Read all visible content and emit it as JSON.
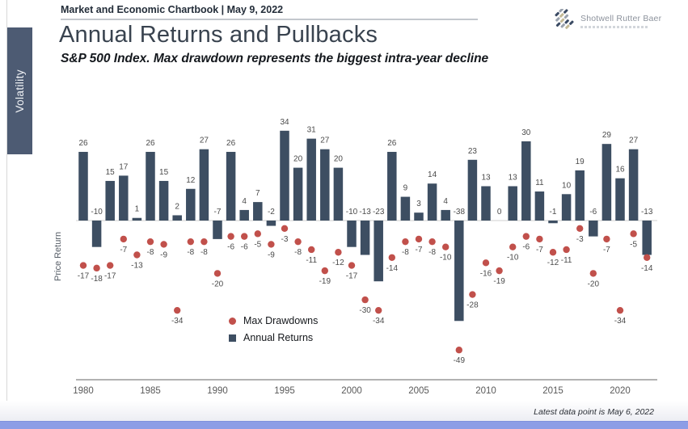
{
  "sidebar": {
    "tab_label": "Volatility"
  },
  "header": {
    "chartbook_label": "Market and Economic Chartbook | May 9, 2022"
  },
  "brand": {
    "name": "Shotwell Rutter Baer",
    "icon": "diagonal-dashes-logo"
  },
  "title": "Annual Returns and Pullbacks",
  "subtitle": "S&P 500 Index. Max drawdown represents the biggest intra-year decline",
  "footer_note": "Latest data point is May 6, 2022",
  "chart_data": {
    "type": "bar",
    "title": "Annual Returns and Pullbacks",
    "xlabel": "",
    "ylabel": "Price Return",
    "x": [
      1980,
      1981,
      1982,
      1983,
      1984,
      1985,
      1986,
      1987,
      1988,
      1989,
      1990,
      1991,
      1992,
      1993,
      1994,
      1995,
      1996,
      1997,
      1998,
      1999,
      2000,
      2001,
      2002,
      2003,
      2004,
      2005,
      2006,
      2007,
      2008,
      2009,
      2010,
      2011,
      2012,
      2013,
      2014,
      2015,
      2016,
      2017,
      2018,
      2019,
      2020,
      2021,
      2022
    ],
    "x_ticks": [
      1980,
      1985,
      1990,
      1995,
      2000,
      2005,
      2010,
      2015,
      2020
    ],
    "series": [
      {
        "name": "Annual Returns",
        "type": "bar",
        "color": "#3d4e62",
        "values": [
          26,
          -10,
          15,
          17,
          1,
          26,
          15,
          2,
          12,
          27,
          -7,
          26,
          4,
          7,
          -2,
          34,
          20,
          31,
          27,
          20,
          -10,
          -13,
          -23,
          26,
          9,
          3,
          14,
          4,
          -38,
          23,
          13,
          0,
          13,
          30,
          11,
          -1,
          10,
          19,
          -6,
          29,
          16,
          27,
          -13
        ]
      },
      {
        "name": "Max Drawdowns",
        "type": "scatter",
        "color": "#c1504b",
        "values": [
          -17,
          -18,
          -17,
          -7,
          -13,
          -8,
          -9,
          -34,
          -8,
          -8,
          -20,
          -6,
          -6,
          -5,
          -9,
          -3,
          -8,
          -11,
          -19,
          -12,
          -17,
          -30,
          -34,
          -14,
          -8,
          -7,
          -8,
          -10,
          -49,
          -28,
          -16,
          -19,
          -10,
          -6,
          -7,
          -12,
          -11,
          -3,
          -20,
          -7,
          -34,
          -5,
          -14
        ]
      }
    ],
    "ylim": [
      -55,
      40
    ],
    "grid": false,
    "data_labels": true,
    "legend_position": "inside-bottom-left"
  },
  "colors": {
    "bar": "#3d4e62",
    "dot": "#c1504b",
    "sidebar_tab": "#4d5b73",
    "bottom_bar": "#8c9de6",
    "axis_line": "#999999",
    "zero_line": "#cfcfcf",
    "value_label": "#4b4b4b",
    "tick_label": "#595959"
  }
}
